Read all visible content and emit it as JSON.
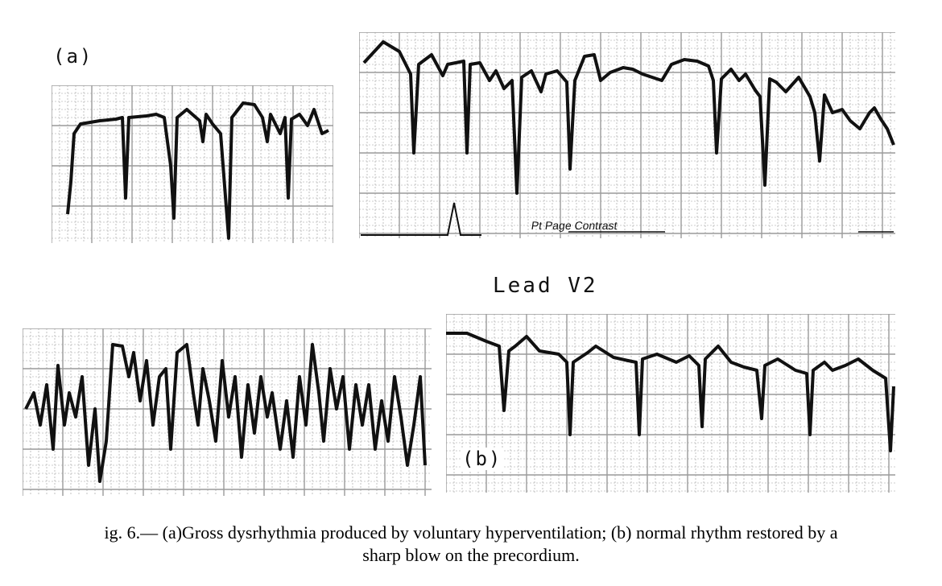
{
  "figure": {
    "panel_a_label": "(a)",
    "lead_label": "Lead V2",
    "panel_b_label": "(b)",
    "annotation": "Pt Page Contrast",
    "caption_line1": "ig. 6.— (a)Gross dysrhythmia produced by voluntary hyperventilation;  (b) normal rhythm restored by a",
    "caption_line2": "sharp blow on the precordium."
  },
  "colors": {
    "trace": "#111111",
    "grid": "#9a9a9a",
    "paper": "#ffffff"
  }
}
